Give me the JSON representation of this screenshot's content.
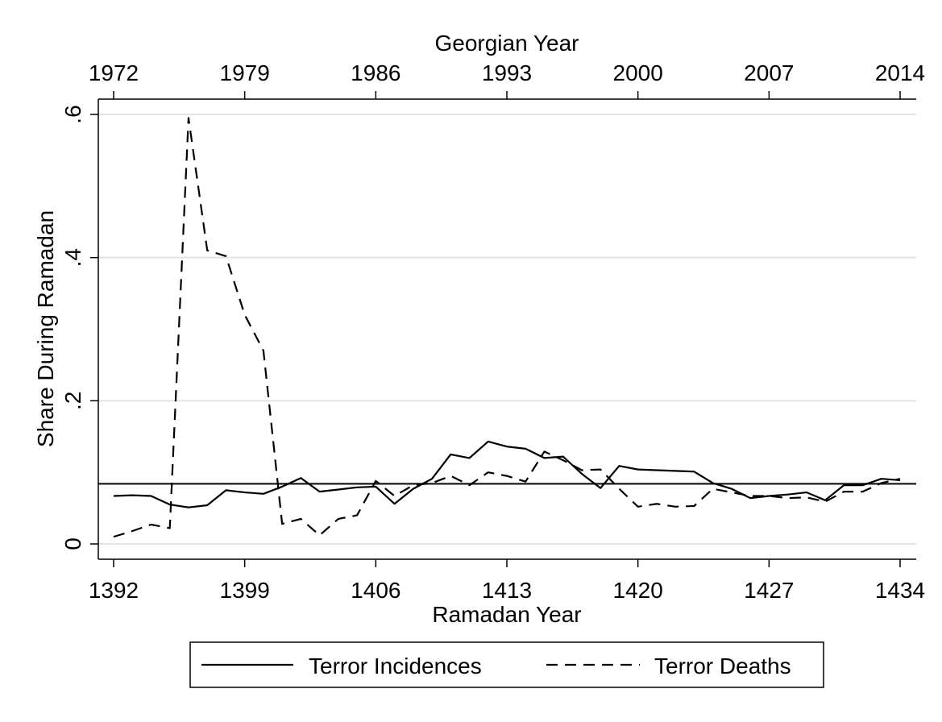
{
  "chart_data": {
    "type": "line",
    "title": "",
    "xlabel": "Ramadan Year",
    "x2label": "Georgian Year",
    "ylabel": "Share During Ramadan",
    "xlim": [
      1392,
      1434
    ],
    "ylim": [
      0,
      0.6
    ],
    "x_ticks": [
      1392,
      1399,
      1406,
      1413,
      1420,
      1427,
      1434
    ],
    "x_tick_labels": [
      "1392",
      "1399",
      "1406",
      "1413",
      "1420",
      "1427",
      "1434"
    ],
    "x2_ticks": [
      1392,
      1399,
      1406,
      1413,
      1420,
      1427,
      1434
    ],
    "x2_tick_labels": [
      "1972",
      "1979",
      "1986",
      "1993",
      "2000",
      "2007",
      "2014"
    ],
    "y_ticks": [
      0,
      0.2,
      0.4,
      0.6
    ],
    "y_tick_labels": [
      "0",
      ".2",
      ".4",
      ".6"
    ],
    "grid": true,
    "reference_line": 0.084,
    "legend_position": "bottom",
    "x": [
      1392,
      1393,
      1394,
      1395,
      1396,
      1397,
      1398,
      1399,
      1400,
      1401,
      1402,
      1403,
      1404,
      1405,
      1406,
      1407,
      1408,
      1409,
      1410,
      1411,
      1412,
      1413,
      1414,
      1415,
      1416,
      1417,
      1418,
      1419,
      1420,
      1421,
      1422,
      1423,
      1424,
      1425,
      1426,
      1427,
      1428,
      1429,
      1430,
      1431,
      1432,
      1433,
      1434
    ],
    "series": [
      {
        "name": "Terror Incidences",
        "style": "solid",
        "values": [
          0.067,
          0.068,
          0.067,
          0.055,
          0.051,
          0.054,
          0.075,
          0.072,
          0.07,
          0.08,
          0.092,
          0.073,
          0.076,
          0.079,
          0.08,
          0.056,
          0.077,
          0.091,
          0.125,
          0.12,
          0.143,
          0.136,
          0.133,
          0.12,
          0.122,
          0.098,
          0.078,
          0.109,
          0.104,
          0.103,
          0.102,
          0.101,
          0.085,
          0.077,
          0.064,
          0.067,
          0.069,
          0.072,
          0.061,
          0.082,
          0.082,
          0.091,
          0.089
        ]
      },
      {
        "name": "Terror Deaths",
        "style": "dashed",
        "values": [
          0.01,
          0.018,
          0.027,
          0.022,
          0.595,
          0.41,
          0.402,
          0.32,
          0.27,
          0.028,
          0.035,
          0.012,
          0.035,
          0.04,
          0.088,
          0.067,
          0.082,
          0.085,
          0.095,
          0.082,
          0.1,
          0.095,
          0.087,
          0.129,
          0.117,
          0.103,
          0.104,
          0.077,
          0.052,
          0.056,
          0.052,
          0.053,
          0.077,
          0.072,
          0.067,
          0.067,
          0.064,
          0.065,
          0.059,
          0.073,
          0.073,
          0.085,
          0.091
        ]
      }
    ]
  }
}
